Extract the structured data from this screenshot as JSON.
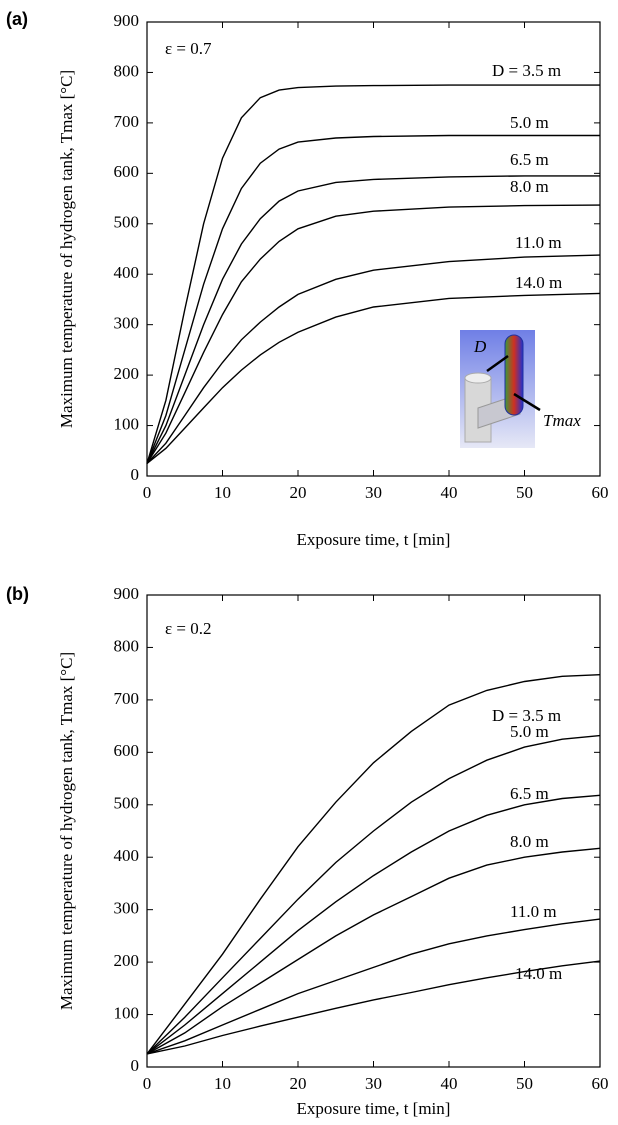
{
  "chart_data": [
    {
      "type": "line",
      "panel_label": "(a)",
      "annotation": "ε = 0.7",
      "x_label": "Exposure time, t [min]",
      "y_label": "Maximum temperature of hydrogen tank, Tmax [°C]",
      "inset_labels": [
        "D",
        "Tmax"
      ],
      "xlim": [
        0,
        60
      ],
      "ylim": [
        0,
        900
      ],
      "xticks": [
        0,
        10,
        20,
        30,
        40,
        50,
        60
      ],
      "yticks": [
        0,
        100,
        200,
        300,
        400,
        500,
        600,
        700,
        800,
        900
      ],
      "x": [
        0,
        2.5,
        5,
        7.5,
        10,
        12.5,
        15,
        17.5,
        20,
        25,
        30,
        40,
        50,
        60
      ],
      "series": [
        {
          "name": "D = 3.5 m",
          "color": "#000000",
          "values": [
            25,
            150,
            330,
            500,
            630,
            710,
            750,
            765,
            770,
            773,
            774,
            775,
            775,
            775
          ]
        },
        {
          "name": "5.0 m",
          "color": "#000000",
          "values": [
            25,
            120,
            250,
            380,
            490,
            570,
            620,
            648,
            662,
            670,
            673,
            675,
            675,
            675
          ]
        },
        {
          "name": "6.5 m",
          "color": "#000000",
          "values": [
            25,
            100,
            200,
            300,
            390,
            460,
            510,
            545,
            565,
            582,
            588,
            593,
            595,
            595
          ]
        },
        {
          "name": "8.0 m",
          "color": "#000000",
          "values": [
            25,
            85,
            165,
            245,
            320,
            385,
            430,
            465,
            490,
            515,
            525,
            533,
            536,
            537
          ]
        },
        {
          "name": "11.0 m",
          "color": "#000000",
          "values": [
            25,
            65,
            120,
            175,
            225,
            270,
            305,
            335,
            360,
            390,
            408,
            425,
            434,
            438
          ]
        },
        {
          "name": "14.0 m",
          "color": "#000000",
          "values": [
            25,
            55,
            95,
            135,
            175,
            210,
            240,
            265,
            285,
            315,
            335,
            352,
            358,
            362
          ]
        }
      ]
    },
    {
      "type": "line",
      "panel_label": "(b)",
      "annotation": "ε = 0.2",
      "x_label": "Exposure time, t [min]",
      "y_label": "Maximum temperature of hydrogen tank, Tmax [°C]",
      "xlim": [
        0,
        60
      ],
      "ylim": [
        0,
        900
      ],
      "xticks": [
        0,
        10,
        20,
        30,
        40,
        50,
        60
      ],
      "yticks": [
        0,
        100,
        200,
        300,
        400,
        500,
        600,
        700,
        800,
        900
      ],
      "x": [
        0,
        5,
        10,
        15,
        20,
        25,
        30,
        35,
        40,
        45,
        50,
        55,
        60
      ],
      "series": [
        {
          "name": "D = 3.5 m",
          "color": "#000000",
          "values": [
            25,
            120,
            215,
            320,
            420,
            505,
            580,
            640,
            690,
            718,
            735,
            745,
            748
          ]
        },
        {
          "name": "5.0 m",
          "color": "#000000",
          "values": [
            25,
            95,
            170,
            245,
            320,
            390,
            450,
            505,
            550,
            585,
            610,
            625,
            632
          ]
        },
        {
          "name": "6.5 m",
          "color": "#000000",
          "values": [
            25,
            80,
            140,
            200,
            260,
            315,
            365,
            410,
            450,
            480,
            500,
            512,
            518
          ]
        },
        {
          "name": "8.0 m",
          "color": "#000000",
          "values": [
            25,
            65,
            115,
            160,
            205,
            250,
            290,
            325,
            360,
            385,
            400,
            410,
            417
          ]
        },
        {
          "name": "11.0 m",
          "color": "#000000",
          "values": [
            25,
            50,
            80,
            110,
            140,
            165,
            190,
            215,
            235,
            250,
            262,
            273,
            282
          ]
        },
        {
          "name": "14.0 m",
          "color": "#000000",
          "values": [
            25,
            40,
            60,
            78,
            95,
            112,
            128,
            142,
            157,
            170,
            182,
            193,
            202
          ]
        }
      ]
    }
  ]
}
